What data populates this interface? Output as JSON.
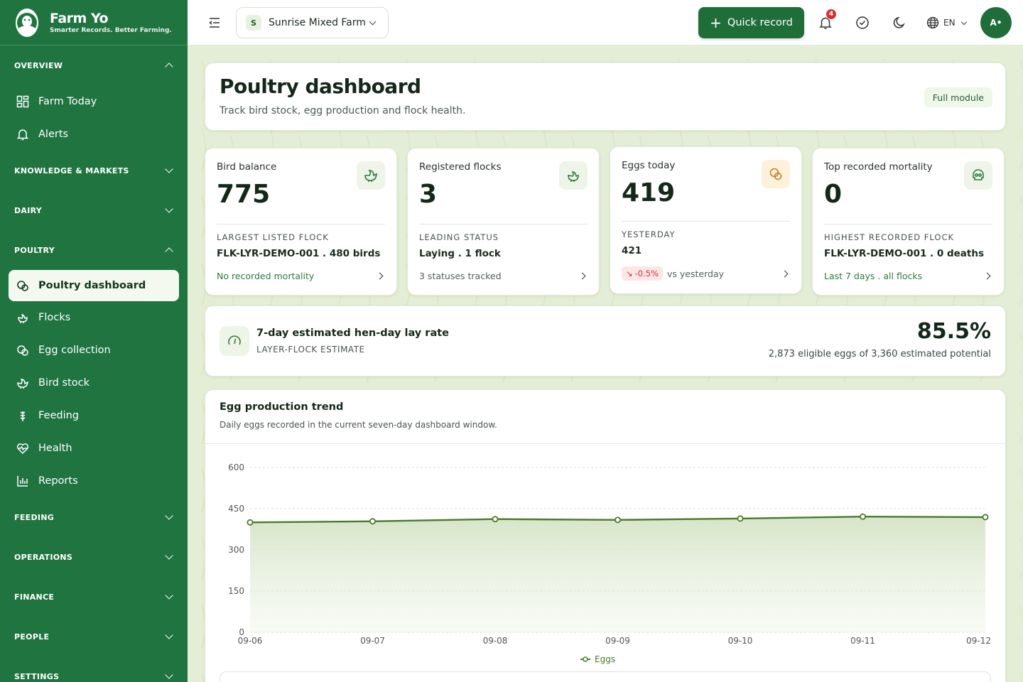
{
  "brand": {
    "name": "Farm Yo",
    "tagline": "Smarter Records. Better Farming."
  },
  "sidebar": {
    "overview": {
      "label": "OVERVIEW",
      "items": [
        {
          "label": "Farm Today",
          "icon": "dashboard-grid-icon"
        },
        {
          "label": "Alerts",
          "icon": "bell-icon"
        }
      ]
    },
    "knowledge": {
      "label": "KNOWLEDGE & MARKETS"
    },
    "dairy": {
      "label": "DAIRY"
    },
    "poultry": {
      "label": "POULTRY",
      "items": [
        {
          "label": "Poultry dashboard",
          "icon": "egg-icon",
          "active": true
        },
        {
          "label": "Flocks",
          "icon": "hen-icon"
        },
        {
          "label": "Egg collection",
          "icon": "egg-icon"
        },
        {
          "label": "Bird stock",
          "icon": "bird-icon"
        },
        {
          "label": "Feeding",
          "icon": "wheat-icon"
        },
        {
          "label": "Health",
          "icon": "heartbeat-icon"
        },
        {
          "label": "Reports",
          "icon": "bar-chart-icon"
        }
      ]
    },
    "feeding": {
      "label": "FEEDING"
    },
    "operations": {
      "label": "OPERATIONS"
    },
    "finance": {
      "label": "FINANCE"
    },
    "people": {
      "label": "PEOPLE"
    },
    "settings": {
      "label": "SETTINGS"
    }
  },
  "topbar": {
    "farm_initial": "S",
    "farm_name": "Sunrise Mixed Farm",
    "quick_record": "Quick record",
    "notification_count": "4",
    "language": "EN",
    "avatar_initials": "A•"
  },
  "header": {
    "title": "Poultry dashboard",
    "subtitle": "Track bird stock, egg production and flock health.",
    "full_module": "Full module"
  },
  "kpis": [
    {
      "label": "Bird balance",
      "value": "775",
      "caption": "LARGEST LISTED FLOCK",
      "detail": "FLK-LYR-DEMO-001 . 480 birds",
      "footer": "No recorded mortality"
    },
    {
      "label": "Registered flocks",
      "value": "3",
      "caption": "LEADING STATUS",
      "detail": "Laying . 1 flock",
      "footer": "3 statuses tracked"
    },
    {
      "label": "Eggs today",
      "value": "419",
      "caption": "YESTERDAY",
      "detail": "421",
      "delta": "-0.5%",
      "footer": "vs yesterday"
    },
    {
      "label": "Top recorded mortality",
      "value": "0",
      "caption": "HIGHEST RECORDED FLOCK",
      "detail": "FLK-LYR-DEMO-001 . 0 deaths",
      "footer": "Last 7 days . all flocks"
    }
  ],
  "lay_rate": {
    "title": "7-day estimated hen-day lay rate",
    "subtitle": "LAYER-FLOCK ESTIMATE",
    "value": "85.5%",
    "note": "2,873 eligible eggs of 3,360 estimated potential"
  },
  "trend": {
    "title": "Egg production trend",
    "subtitle": "Daily eggs recorded in the current seven-day dashboard window."
  },
  "colors": {
    "brand_green": "#1f7440",
    "accent_green": "#1f6e3a",
    "line_green": "#4a7a2a",
    "alert_red": "#d92f2f"
  },
  "chart_data": {
    "type": "line",
    "title": "Egg production trend",
    "x": [
      "09-06",
      "09-07",
      "09-08",
      "09-09",
      "09-10",
      "09-11",
      "09-12"
    ],
    "series": [
      {
        "name": "Eggs",
        "values": [
          400,
          404,
          412,
          409,
          414,
          421,
          419
        ]
      }
    ],
    "ylim": [
      0,
      600
    ],
    "yticks": [
      0,
      150,
      300,
      450,
      600
    ],
    "grid": true,
    "legend": "bottom-center"
  }
}
